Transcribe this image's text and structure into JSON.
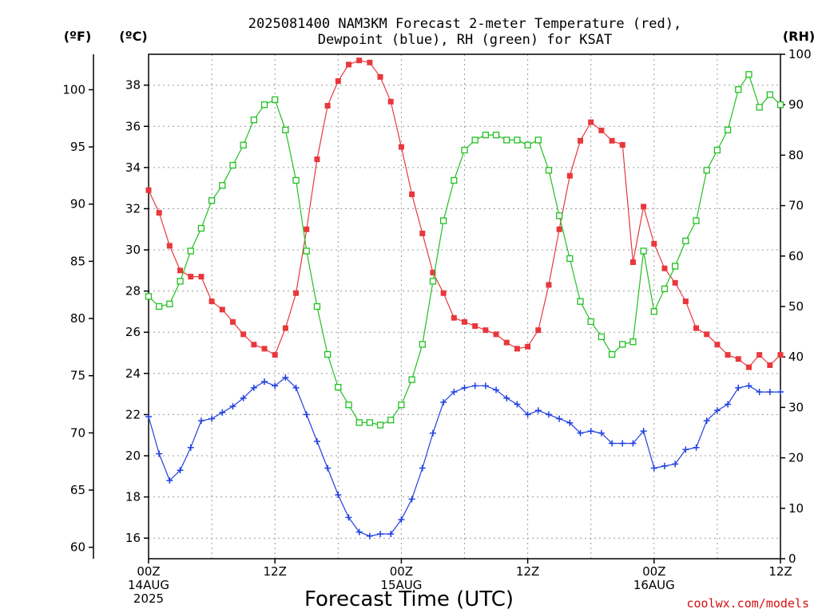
{
  "chart_data": {
    "type": "line",
    "title_line1": "2025081400 NAM3KM Forecast 2-meter Temperature (red),",
    "title_line2": "Dewpoint (blue), RH (green) for KSAT",
    "xlabel": "Forecast Time (UTC)",
    "credit": "coolwx.com/models",
    "left_outer_unit": "(ºF)",
    "left_inner_unit": "(ºC)",
    "right_unit": "(RH)",
    "x_hours_range": [
      0,
      60
    ],
    "y_celsius_range": [
      15,
      39.5
    ],
    "y_rh_range": [
      0,
      100
    ],
    "celsius_ticks": [
      "16",
      "18",
      "20",
      "22",
      "24",
      "26",
      "28",
      "30",
      "32",
      "34",
      "36",
      "38"
    ],
    "fahrenheit_ticks": [
      "60",
      "65",
      "70",
      "75",
      "80",
      "85",
      "90",
      "95",
      "100"
    ],
    "rh_ticks": [
      "0",
      "10",
      "20",
      "30",
      "40",
      "50",
      "60",
      "70",
      "80",
      "90",
      "100"
    ],
    "x_ticks": [
      {
        "hour": 0,
        "line1": "00Z",
        "line2": "14AUG",
        "line3": "2025"
      },
      {
        "hour": 12,
        "line1": "12Z",
        "line2": "",
        "line3": ""
      },
      {
        "hour": 24,
        "line1": "00Z",
        "line2": "15AUG",
        "line3": ""
      },
      {
        "hour": 36,
        "line1": "12Z",
        "line2": "",
        "line3": ""
      },
      {
        "hour": 48,
        "line1": "00Z",
        "line2": "16AUG",
        "line3": ""
      },
      {
        "hour": 60,
        "line1": "12Z",
        "line2": "",
        "line3": ""
      }
    ],
    "series": [
      {
        "name": "Temperature (red)",
        "unit": "C",
        "color": "#e8383c",
        "marker": "filled-square",
        "x": [
          0,
          1,
          2,
          3,
          4,
          5,
          6,
          7,
          8,
          9,
          10,
          11,
          12,
          13,
          14,
          15,
          16,
          17,
          18,
          19,
          20,
          21,
          22,
          23,
          24,
          25,
          26,
          27,
          28,
          29,
          30,
          31,
          32,
          33,
          34,
          35,
          36,
          37,
          38,
          39,
          40,
          41,
          42,
          43,
          44,
          45,
          46,
          47,
          48,
          49,
          50,
          51,
          52,
          53,
          54,
          55,
          56,
          57,
          58,
          59,
          60
        ],
        "values": [
          32.9,
          31.8,
          30.2,
          29.0,
          28.7,
          28.7,
          27.5,
          27.1,
          26.5,
          25.9,
          25.4,
          25.2,
          24.9,
          26.2,
          27.9,
          31.0,
          34.4,
          37.0,
          38.2,
          39.0,
          39.2,
          39.1,
          38.4,
          37.2,
          35.0,
          32.7,
          30.8,
          28.9,
          27.9,
          26.7,
          26.5,
          26.3,
          26.1,
          25.9,
          25.5,
          25.2,
          25.3,
          26.1,
          28.3,
          31.0,
          33.6,
          35.3,
          36.2,
          35.8,
          35.3,
          35.1,
          29.4,
          32.1,
          30.3,
          29.1,
          28.4,
          27.5,
          26.2,
          25.9,
          25.4,
          24.9,
          24.7,
          24.3,
          24.9,
          24.4,
          24.9
        ]
      },
      {
        "name": "Dewpoint (blue)",
        "unit": "C",
        "color": "#2040e0",
        "marker": "plus",
        "x": [
          0,
          1,
          2,
          3,
          4,
          5,
          6,
          7,
          8,
          9,
          10,
          11,
          12,
          13,
          14,
          15,
          16,
          17,
          18,
          19,
          20,
          21,
          22,
          23,
          24,
          25,
          26,
          27,
          28,
          29,
          30,
          31,
          32,
          33,
          34,
          35,
          36,
          37,
          38,
          39,
          40,
          41,
          42,
          43,
          44,
          45,
          46,
          47,
          48,
          49,
          50,
          51,
          52,
          53,
          54,
          55,
          56,
          57,
          58,
          59,
          60
        ],
        "values": [
          21.9,
          20.1,
          18.8,
          19.3,
          20.4,
          21.7,
          21.8,
          22.1,
          22.4,
          22.8,
          23.3,
          23.6,
          23.4,
          23.8,
          23.3,
          22.0,
          20.7,
          19.4,
          18.1,
          17.0,
          16.3,
          16.1,
          16.2,
          16.2,
          16.9,
          17.9,
          19.4,
          21.1,
          22.6,
          23.1,
          23.3,
          23.4,
          23.4,
          23.2,
          22.8,
          22.5,
          22.0,
          22.2,
          22.0,
          21.8,
          21.6,
          21.1,
          21.2,
          21.1,
          20.6,
          20.6,
          20.6,
          21.2,
          19.4,
          19.5,
          19.6,
          20.3,
          20.4,
          21.7,
          22.2,
          22.5,
          23.3,
          23.4,
          23.1,
          23.1,
          23.1
        ]
      },
      {
        "name": "RH (green)",
        "unit": "%",
        "color": "#20c020",
        "marker": "open-square",
        "x": [
          0,
          1,
          2,
          3,
          4,
          5,
          6,
          7,
          8,
          9,
          10,
          11,
          12,
          13,
          14,
          15,
          16,
          17,
          18,
          19,
          20,
          21,
          22,
          23,
          24,
          25,
          26,
          27,
          28,
          29,
          30,
          31,
          32,
          33,
          34,
          35,
          36,
          37,
          38,
          39,
          40,
          41,
          42,
          43,
          44,
          45,
          46,
          47,
          48,
          49,
          50,
          51,
          52,
          53,
          54,
          55,
          56,
          57,
          58,
          59,
          60
        ],
        "values": [
          52,
          50,
          50.5,
          55,
          61,
          65.5,
          71,
          74,
          78,
          82,
          87,
          90,
          91,
          85,
          75,
          61,
          50,
          40.5,
          34,
          30.5,
          27,
          27,
          26.5,
          27.5,
          30.5,
          35.5,
          42.5,
          55,
          67,
          75,
          81,
          83,
          84,
          84,
          83,
          83,
          82,
          83,
          77,
          68,
          59.5,
          51,
          47,
          44,
          40.5,
          42.5,
          43,
          61,
          49,
          53.5,
          58,
          63,
          67,
          77,
          81,
          85,
          93,
          96,
          89.5,
          92,
          90
        ]
      }
    ]
  }
}
